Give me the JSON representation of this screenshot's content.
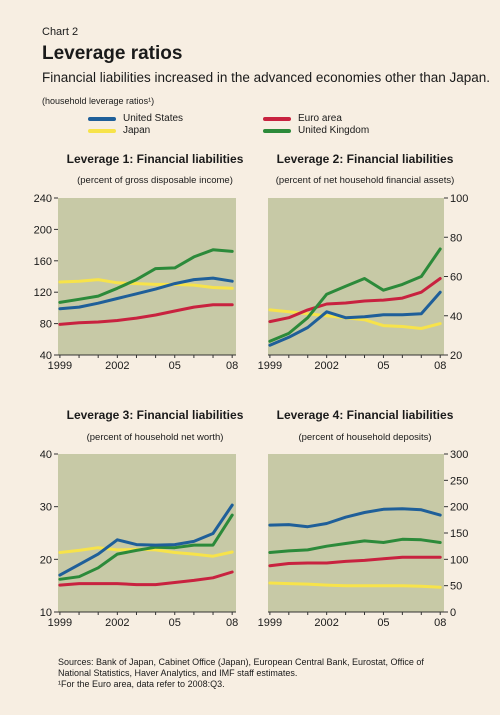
{
  "header": {
    "chart_label": "Chart 2",
    "title": "Leverage ratios",
    "subtitle": "Financial liabilities increased in the advanced economies other than Japan.",
    "note": "(household leverage ratios¹)"
  },
  "legend": [
    {
      "name": "United States",
      "color": "#1f5f99"
    },
    {
      "name": "Japan",
      "color": "#f7e34a"
    },
    {
      "name": "Euro area",
      "color": "#c8223f"
    },
    {
      "name": "United Kingdom",
      "color": "#2c8a3a"
    }
  ],
  "colors": {
    "plot_background": "#c7c9a6",
    "page_background": "#f7eee2",
    "United States": "#1f5f99",
    "Japan": "#f7e34a",
    "Euro area": "#c8223f",
    "United Kingdom": "#2c8a3a"
  },
  "chart_data": [
    {
      "type": "line",
      "title": "Leverage 1: Financial liabilities",
      "subtitle": "(percent of gross disposable income)",
      "x": [
        1999,
        2000,
        2001,
        2002,
        2003,
        2004,
        2005,
        2006,
        2007,
        2008
      ],
      "xticks": [
        "1999",
        "2002",
        "05",
        "08"
      ],
      "xtick_values": [
        1999,
        2002,
        2005,
        2008
      ],
      "xlim": [
        1998.9,
        2008.2
      ],
      "ylim": [
        40,
        240
      ],
      "yticks": [
        40,
        80,
        120,
        160,
        200,
        240
      ],
      "yaxis_side": "left",
      "series": [
        {
          "name": "United States",
          "values": [
            99,
            101,
            106,
            112,
            118,
            124,
            131,
            136,
            138,
            134
          ]
        },
        {
          "name": "Japan",
          "values": [
            133,
            134,
            136,
            132,
            131,
            130,
            130,
            129,
            126,
            125
          ]
        },
        {
          "name": "Euro area",
          "values": [
            79,
            81,
            82,
            84,
            87,
            91,
            96,
            101,
            104,
            104
          ]
        },
        {
          "name": "United Kingdom",
          "values": [
            107,
            111,
            115,
            125,
            136,
            150,
            151,
            165,
            174,
            172
          ]
        }
      ]
    },
    {
      "type": "line",
      "title": "Leverage 2: Financial liabilities",
      "subtitle": "(percent of net household financial assets)",
      "x": [
        1999,
        2000,
        2001,
        2002,
        2003,
        2004,
        2005,
        2006,
        2007,
        2008
      ],
      "xticks": [
        "1999",
        "2002",
        "05",
        "08"
      ],
      "xtick_values": [
        1999,
        2002,
        2005,
        2008
      ],
      "xlim": [
        1998.9,
        2008.2
      ],
      "ylim": [
        20,
        100
      ],
      "yticks": [
        20,
        40,
        60,
        80,
        100
      ],
      "yaxis_side": "right",
      "series": [
        {
          "name": "United States",
          "values": [
            25,
            29,
            34,
            42,
            39,
            39.5,
            40.5,
            40.5,
            41,
            52
          ]
        },
        {
          "name": "Japan",
          "values": [
            43,
            42,
            41,
            40,
            39,
            38,
            35,
            34.5,
            33.5,
            36
          ]
        },
        {
          "name": "Euro area",
          "values": [
            37,
            39,
            43,
            46,
            46.5,
            47.5,
            48,
            49,
            52,
            59
          ]
        },
        {
          "name": "United Kingdom",
          "values": [
            27,
            31,
            39,
            51,
            55,
            59,
            53,
            56,
            60,
            74
          ]
        }
      ]
    },
    {
      "type": "line",
      "title": "Leverage 3: Financial liabilities",
      "subtitle": "(percent of household net worth)",
      "x": [
        1999,
        2000,
        2001,
        2002,
        2003,
        2004,
        2005,
        2006,
        2007,
        2008
      ],
      "xticks": [
        "1999",
        "2002",
        "05",
        "08"
      ],
      "xtick_values": [
        1999,
        2002,
        2005,
        2008
      ],
      "xlim": [
        1998.9,
        2008.2
      ],
      "ylim": [
        10,
        40
      ],
      "yticks": [
        10,
        20,
        30,
        40
      ],
      "yaxis_side": "left",
      "series": [
        {
          "name": "United States",
          "values": [
            17,
            19,
            21,
            23.7,
            22.8,
            22.7,
            22.8,
            23.4,
            24.9,
            30.3
          ]
        },
        {
          "name": "Japan",
          "values": [
            21.3,
            21.7,
            22.2,
            21.8,
            21.9,
            21.8,
            21.3,
            21,
            20.6,
            21.4
          ]
        },
        {
          "name": "Euro area",
          "values": [
            15.1,
            15.4,
            15.4,
            15.4,
            15.2,
            15.2,
            15.6,
            16,
            16.5,
            17.6
          ]
        },
        {
          "name": "United Kingdom",
          "values": [
            16.2,
            16.7,
            18.4,
            21,
            21.7,
            22.3,
            22.2,
            22.7,
            22.7,
            28.4
          ]
        }
      ]
    },
    {
      "type": "line",
      "title": "Leverage 4: Financial liabilities",
      "subtitle": "(percent of household deposits)",
      "x": [
        1999,
        2000,
        2001,
        2002,
        2003,
        2004,
        2005,
        2006,
        2007,
        2008
      ],
      "xticks": [
        "1999",
        "2002",
        "05",
        "08"
      ],
      "xtick_values": [
        1999,
        2002,
        2005,
        2008
      ],
      "xlim": [
        1998.9,
        2008.2
      ],
      "ylim": [
        0,
        300
      ],
      "yticks": [
        0,
        50,
        100,
        150,
        200,
        250,
        300
      ],
      "yaxis_side": "right",
      "series": [
        {
          "name": "United States",
          "values": [
            165,
            166,
            162,
            168,
            180,
            189,
            195,
            196,
            194,
            184
          ]
        },
        {
          "name": "Japan",
          "values": [
            55,
            54,
            53,
            51,
            50,
            50,
            50,
            50,
            49,
            47
          ]
        },
        {
          "name": "Euro area",
          "values": [
            88,
            92,
            93,
            93,
            96,
            98,
            101,
            104,
            104,
            104
          ]
        },
        {
          "name": "United Kingdom",
          "values": [
            113,
            116,
            118,
            125,
            130,
            135,
            132,
            138,
            137,
            132
          ]
        }
      ]
    }
  ],
  "footer": {
    "sources": "Sources: Bank of Japan, Cabinet Office (Japan), European Central Bank, Eurostat, Office of National Statistics, Haver Analytics, and IMF staff estimates.",
    "footnote": "¹For the Euro area, data refer to 2008:Q3."
  }
}
